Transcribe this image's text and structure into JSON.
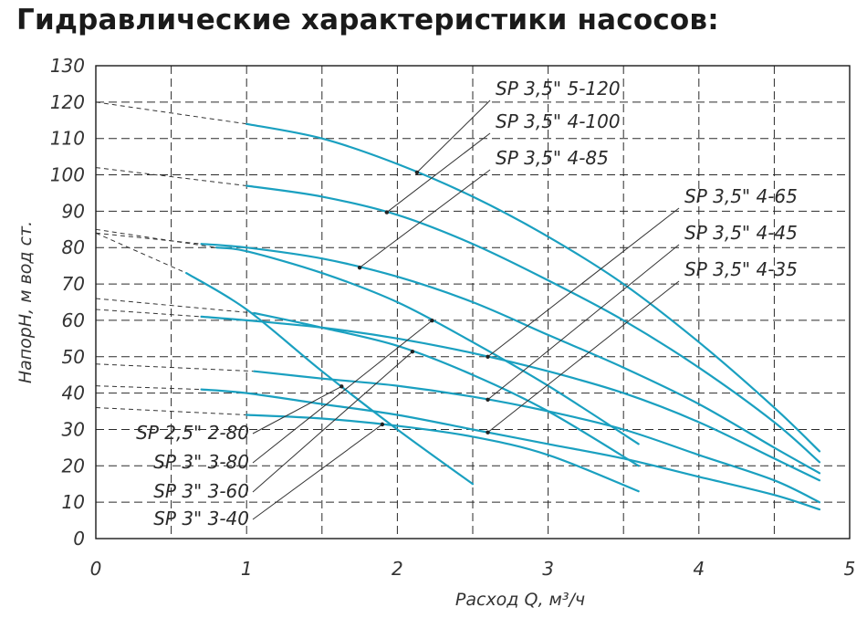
{
  "chart_data": {
    "type": "line",
    "title": "Гидравлические характеристики насосов:",
    "xlabel": "Расход Q, м³/ч",
    "ylabel": "НапорH, м вод ст.",
    "xlim": [
      0,
      5
    ],
    "ylim": [
      0,
      130
    ],
    "xticks": [
      "0",
      "1",
      "2",
      "3",
      "4",
      "5"
    ],
    "yticks": [
      "0",
      "10",
      "20",
      "30",
      "40",
      "50",
      "60",
      "70",
      "80",
      "90",
      "100",
      "110",
      "120",
      "130"
    ],
    "grid": true,
    "series": [
      {
        "name": "SP 3,5\" 5-120",
        "color": "#1aa0c0",
        "x": [
          1.0,
          1.5,
          2.0,
          2.5,
          3.0,
          3.5,
          4.0,
          4.5,
          4.8
        ],
        "y": [
          114,
          110,
          103,
          94,
          83,
          70,
          54,
          36,
          24
        ],
        "dashed_to_y0": 120
      },
      {
        "name": "SP 3,5\" 4-100",
        "color": "#1aa0c0",
        "x": [
          1.0,
          1.5,
          2.0,
          2.5,
          3.0,
          3.5,
          4.0,
          4.5,
          4.8
        ],
        "y": [
          97,
          94,
          89,
          81,
          71,
          60,
          47,
          32,
          21
        ],
        "dashed_to_y0": 102
      },
      {
        "name": "SP 3,5\" 4-85",
        "color": "#1aa0c0",
        "x": [
          0.7,
          1.0,
          1.5,
          2.0,
          2.5,
          3.0,
          3.5,
          4.0,
          4.5,
          4.8
        ],
        "y": [
          81,
          80,
          77,
          72,
          65,
          56,
          47,
          37,
          25,
          18
        ],
        "dashed_to_y0": 84
      },
      {
        "name": "SP 3,5\" 4-65",
        "color": "#1aa0c0",
        "x": [
          0.7,
          1.0,
          1.5,
          2.0,
          2.5,
          3.0,
          3.5,
          4.0,
          4.5,
          4.8
        ],
        "y": [
          61,
          60,
          58,
          55,
          51,
          46,
          40,
          32,
          22,
          16
        ],
        "dashed_to_y0": 63
      },
      {
        "name": "SP 3,5\" 4-45",
        "color": "#1aa0c0",
        "x": [
          1.05,
          1.5,
          2.0,
          2.5,
          3.0,
          3.5,
          4.0,
          4.5,
          4.8
        ],
        "y": [
          46,
          44,
          42,
          39,
          35,
          30,
          23,
          16,
          10
        ],
        "dashed_to_y0": 48
      },
      {
        "name": "SP 3,5\" 4-35",
        "color": "#1aa0c0",
        "x": [
          0.7,
          1.0,
          1.5,
          2.0,
          2.5,
          3.0,
          3.5,
          4.0,
          4.5,
          4.8
        ],
        "y": [
          41,
          40,
          37,
          34,
          30,
          26,
          22,
          17,
          12,
          8
        ],
        "dashed_to_y0": 42
      },
      {
        "name": "SP 2,5\" 2-80",
        "color": "#1aa0c0",
        "x": [
          0.6,
          1.0,
          1.5,
          2.0,
          2.5
        ],
        "y": [
          73,
          63,
          46,
          30,
          15
        ],
        "dashed_to_y0": 84
      },
      {
        "name": "SP 3\" 3-80",
        "color": "#1aa0c0",
        "x": [
          0.8,
          1.0,
          1.5,
          2.0,
          2.5,
          3.0,
          3.6
        ],
        "y": [
          80,
          79,
          73,
          65,
          54,
          42,
          26
        ],
        "dashed_to_y0": 85
      },
      {
        "name": "SP 3\" 3-60",
        "color": "#1aa0c0",
        "x": [
          1.05,
          1.5,
          2.0,
          2.5,
          3.0,
          3.6
        ],
        "y": [
          62,
          58,
          53,
          45,
          35,
          20
        ],
        "dashed_to_y0": 66
      },
      {
        "name": "SP 3\" 3-40",
        "color": "#1aa0c0",
        "x": [
          1.0,
          1.5,
          2.0,
          2.5,
          3.0,
          3.6
        ],
        "y": [
          34,
          33,
          31,
          28,
          23,
          13
        ],
        "dashed_to_y0": 36
      }
    ],
    "annotations": [
      {
        "series": "SP 3,5\" 5-120",
        "anchor_x": 2.13,
        "label_side": "right",
        "label_row": 0
      },
      {
        "series": "SP 3,5\" 4-100",
        "anchor_x": 1.93,
        "label_side": "right",
        "label_row": 1
      },
      {
        "series": "SP 3,5\" 4-85",
        "anchor_x": 1.75,
        "label_side": "right",
        "label_row": 2
      },
      {
        "series": "SP 3,5\" 4-65",
        "anchor_x": 2.6,
        "label_side": "right",
        "label_row": 3
      },
      {
        "series": "SP 3,5\" 4-45",
        "anchor_x": 2.6,
        "label_side": "right",
        "label_row": 4
      },
      {
        "series": "SP 3,5\" 4-35",
        "anchor_x": 2.6,
        "label_side": "right",
        "label_row": 5
      },
      {
        "series": "SP 2,5\" 2-80",
        "anchor_x": 1.63,
        "label_side": "left",
        "label_row": 0
      },
      {
        "series": "SP 3\" 3-80",
        "anchor_x": 2.23,
        "label_side": "left",
        "label_row": 1
      },
      {
        "series": "SP 3\" 3-60",
        "anchor_x": 2.1,
        "label_side": "left",
        "label_row": 2
      },
      {
        "series": "SP 3\" 3-40",
        "anchor_x": 1.9,
        "label_side": "left",
        "label_row": 3
      }
    ]
  }
}
